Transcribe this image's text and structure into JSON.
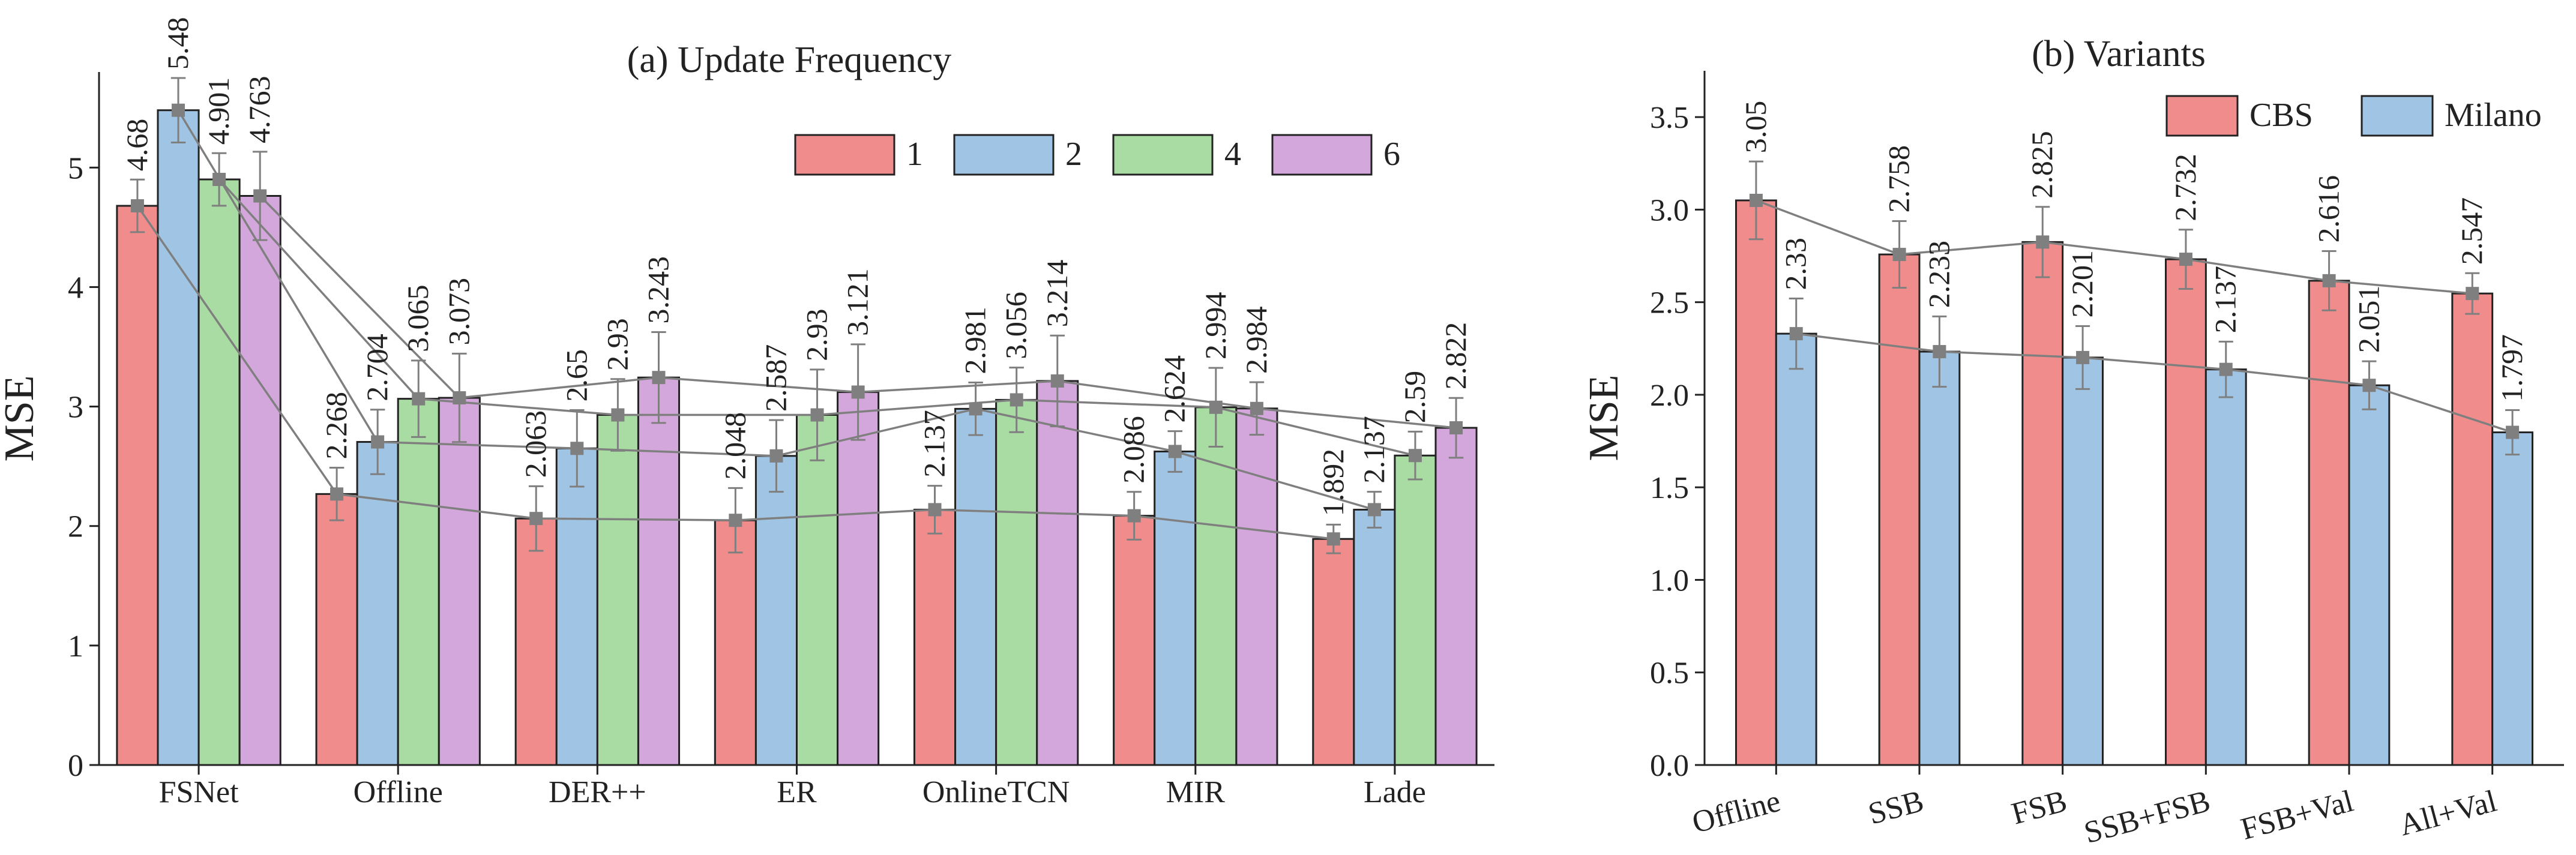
{
  "colors": {
    "s1": "#F08C8C",
    "s2": "#A0C4E4",
    "s4": "#A9DCA2",
    "s6": "#D4A7DC",
    "cbs": "#F08C8C",
    "milano": "#A0C4E4",
    "marker": "#7F7F7F"
  },
  "chart_data": [
    {
      "type": "bar",
      "title": "(a) Update Frequency",
      "xlabel": "",
      "ylabel": "MSE",
      "ylim": [
        0,
        5.8
      ],
      "yticks": [
        "0",
        "1",
        "2",
        "3",
        "4",
        "5"
      ],
      "legend_position": "top-right",
      "grid": false,
      "categories": [
        "FSNet",
        "Offline",
        "DER++",
        "ER",
        "OnlineTCN",
        "MIR",
        "Lade"
      ],
      "series": [
        {
          "name": "1",
          "values": [
            4.68,
            2.268,
            2.063,
            2.048,
            2.137,
            2.086,
            1.892
          ],
          "labels": [
            "4.68",
            "2.268",
            "2.063",
            "2.048",
            "2.137",
            "2.086",
            "1.892"
          ],
          "errors": [
            0.22,
            0.22,
            0.27,
            0.27,
            0.2,
            0.2,
            0.12
          ]
        },
        {
          "name": "2",
          "values": [
            5.48,
            2.704,
            2.65,
            2.587,
            2.981,
            2.624,
            2.137
          ],
          "labels": [
            "5.48",
            "2.704",
            "2.65",
            "2.587",
            "2.981",
            "2.624",
            "2.137"
          ],
          "errors": [
            0.27,
            0.27,
            0.32,
            0.3,
            0.22,
            0.17,
            0.15
          ]
        },
        {
          "name": "4",
          "values": [
            4.901,
            3.065,
            2.93,
            2.93,
            3.056,
            2.994,
            2.59
          ],
          "labels": [
            "4.901",
            "3.065",
            "2.93",
            "2.93",
            "3.056",
            "2.994",
            "2.59"
          ],
          "errors": [
            0.22,
            0.32,
            0.3,
            0.38,
            0.27,
            0.33,
            0.2
          ]
        },
        {
          "name": "6",
          "values": [
            4.763,
            3.073,
            3.243,
            3.121,
            3.214,
            2.984,
            2.822
          ],
          "labels": [
            "4.763",
            "3.073",
            "3.243",
            "3.121",
            "3.214",
            "2.984",
            "2.822"
          ],
          "errors": [
            0.37,
            0.37,
            0.38,
            0.4,
            0.38,
            0.22,
            0.25
          ]
        }
      ]
    },
    {
      "type": "bar",
      "title": "(b) Variants",
      "xlabel": "",
      "ylabel": "MSE",
      "ylim": [
        0,
        3.75
      ],
      "yticks": [
        "0.0",
        "0.5",
        "1.0",
        "1.5",
        "2.0",
        "2.5",
        "3.0",
        "3.5"
      ],
      "legend_position": "top-right",
      "grid": false,
      "categories": [
        "Offline",
        "SSB",
        "FSB",
        "SSB+FSB",
        "FSB+Val",
        "All+Val"
      ],
      "series": [
        {
          "name": "CBS",
          "values": [
            3.05,
            2.758,
            2.825,
            2.732,
            2.616,
            2.547
          ],
          "labels": [
            "3.05",
            "2.758",
            "2.825",
            "2.732",
            "2.616",
            "2.547"
          ],
          "errors": [
            0.21,
            0.18,
            0.19,
            0.16,
            0.16,
            0.11
          ]
        },
        {
          "name": "Milano",
          "values": [
            2.33,
            2.233,
            2.201,
            2.137,
            2.051,
            1.797
          ],
          "labels": [
            "2.33",
            "2.233",
            "2.201",
            "2.137",
            "2.051",
            "1.797"
          ],
          "errors": [
            0.19,
            0.19,
            0.17,
            0.15,
            0.13,
            0.12
          ]
        }
      ]
    }
  ]
}
